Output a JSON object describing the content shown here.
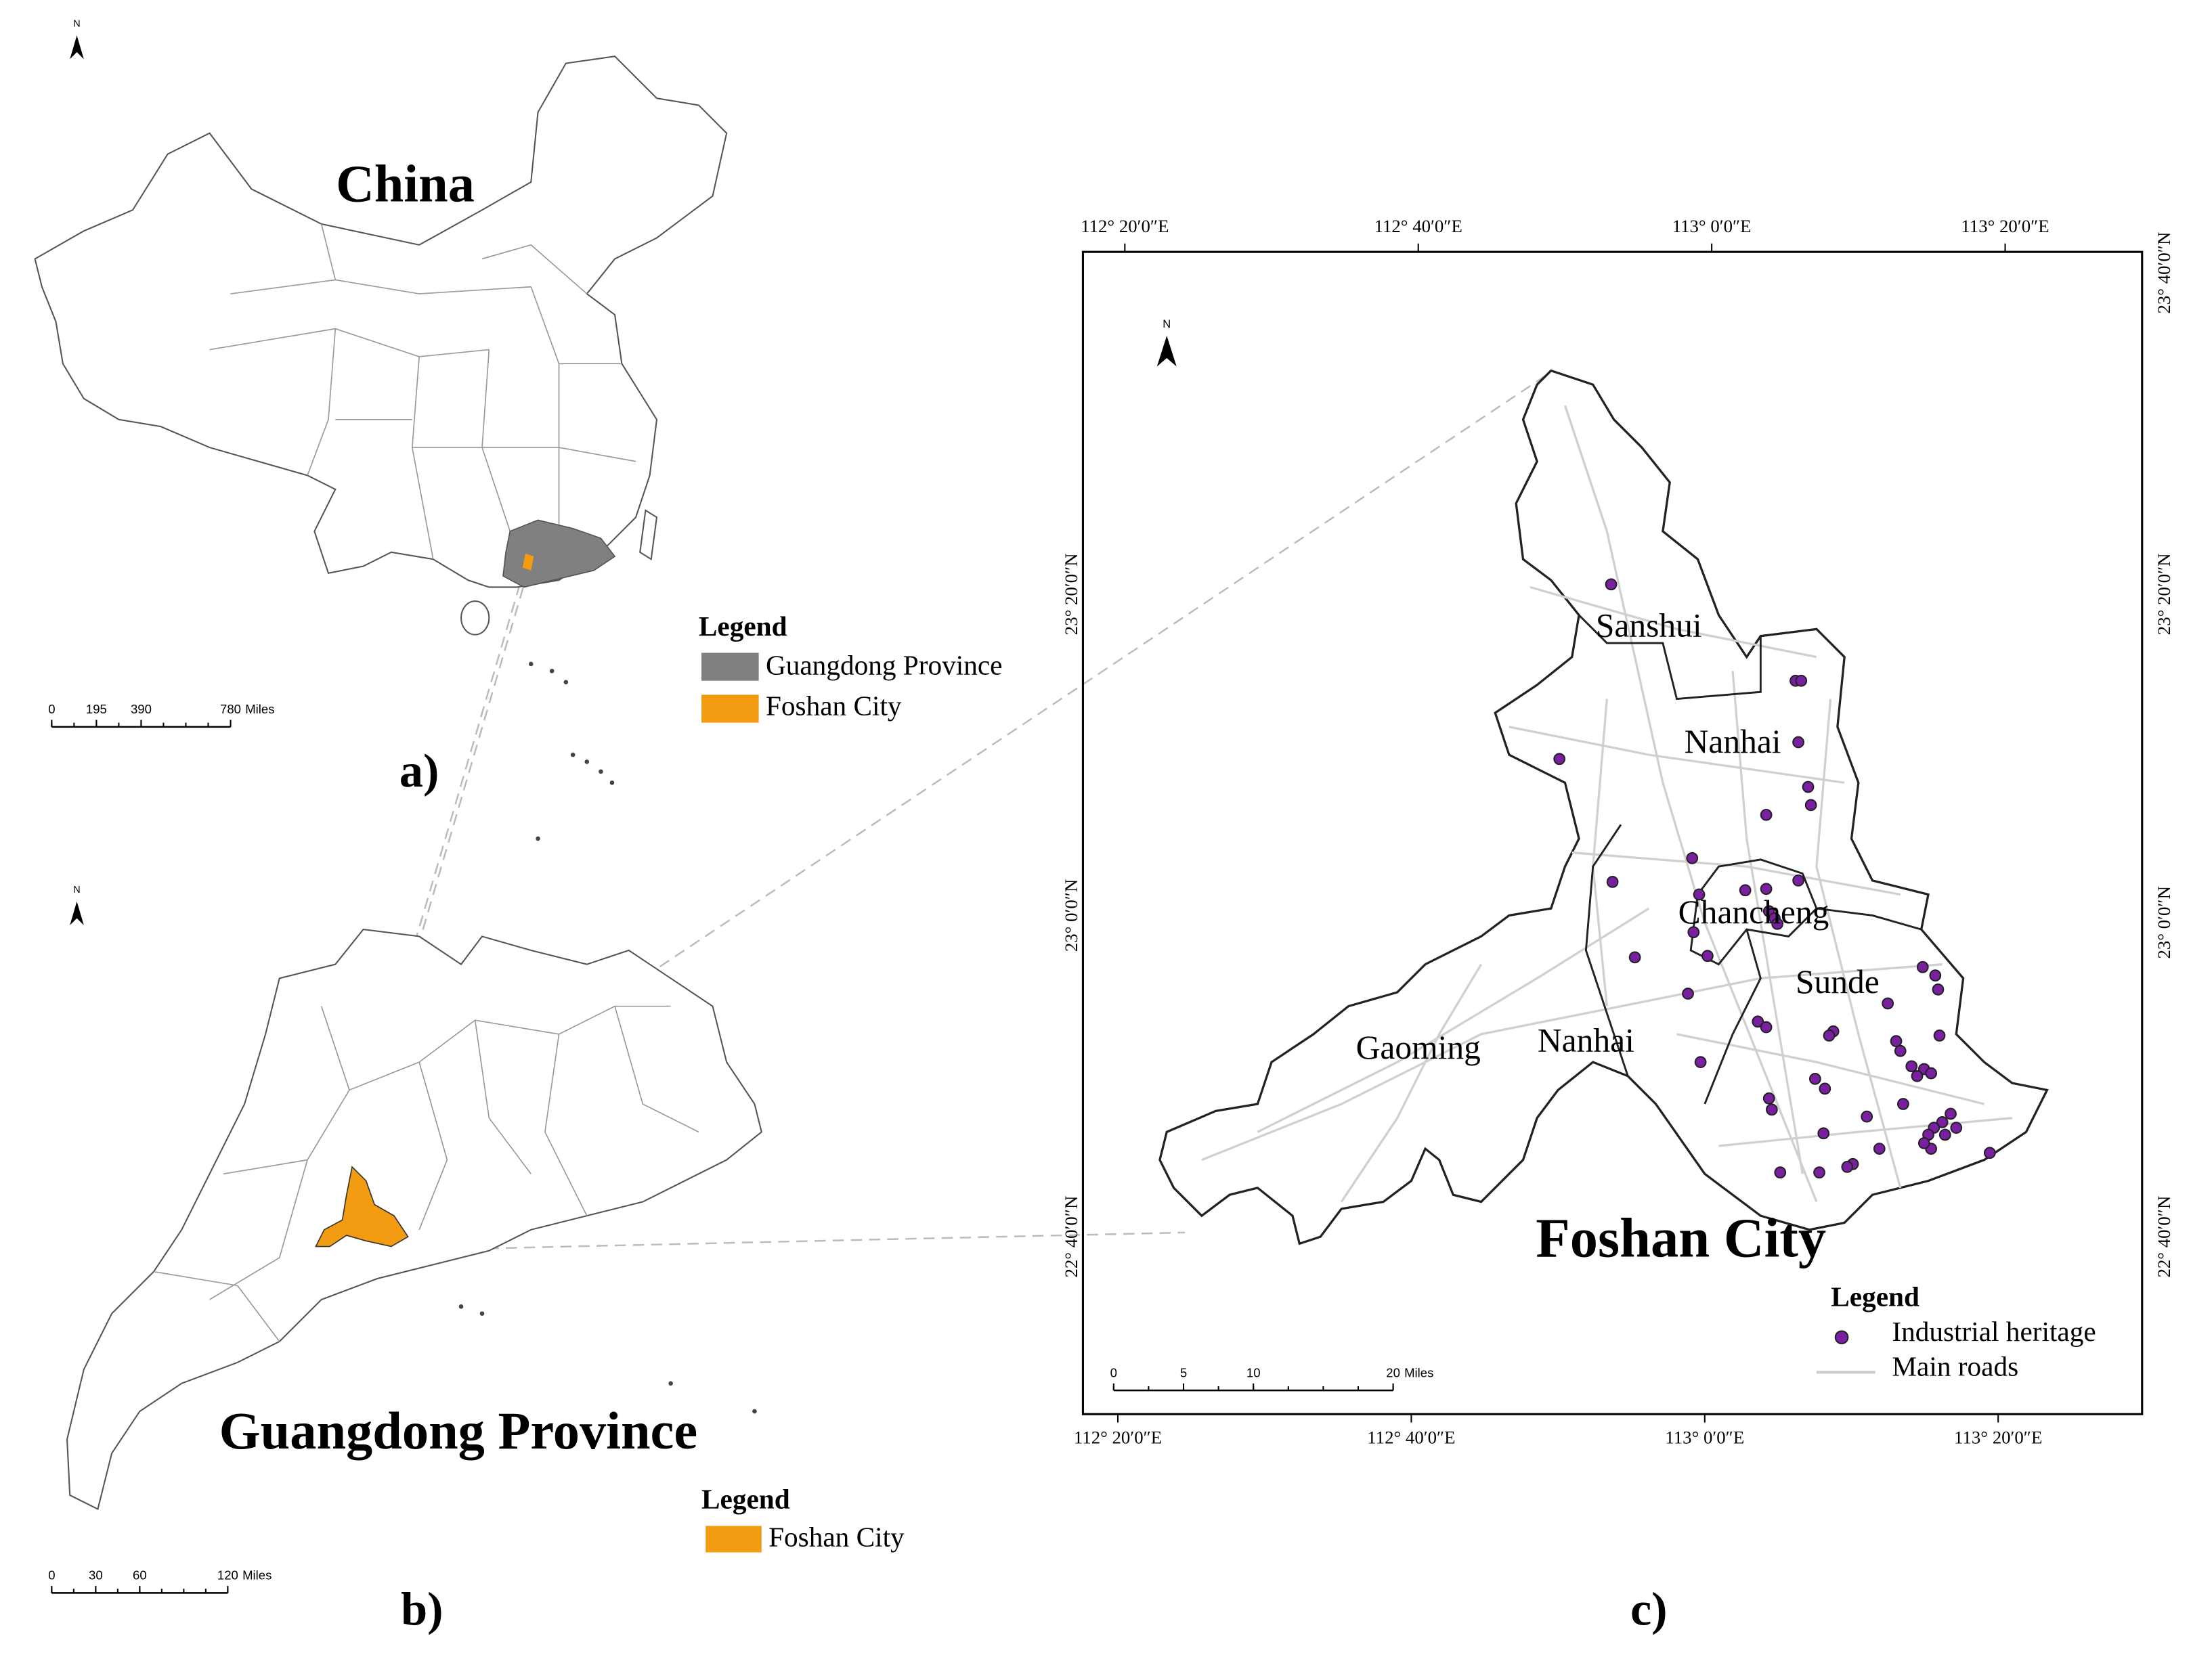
{
  "panel_a": {
    "north": "N",
    "title": "China",
    "label": "a)",
    "legend": {
      "title": "Legend",
      "items": [
        "Guangdong Province",
        "Foshan City"
      ]
    },
    "scale": {
      "ticks": [
        0,
        195,
        390,
        780
      ],
      "unit": "Miles"
    }
  },
  "panel_b": {
    "north": "N",
    "title": "Guangdong Province",
    "label": "b)",
    "legend": {
      "title": "Legend",
      "items": [
        "Foshan City"
      ]
    },
    "scale": {
      "ticks": [
        0,
        30,
        60,
        120
      ],
      "unit": "Miles"
    }
  },
  "panel_c": {
    "north": "N",
    "title": "Foshan City",
    "label": "c)",
    "districts": [
      "Sanshui",
      "Nanhai",
      "Chancheng",
      "Sunde",
      "Gaoming",
      "Nanhai"
    ],
    "legend": {
      "title": "Legend",
      "items": [
        "Industrial heritage",
        "Main roads"
      ]
    },
    "scale": {
      "ticks": [
        0,
        5,
        10,
        20
      ],
      "unit": "Miles"
    },
    "top_coords": [
      "112° 20′0″E",
      "112° 40′0″E",
      "113° 0′0″E",
      "113° 20′0″E"
    ],
    "bottom_coords": [
      "112° 20′0″E",
      "112° 40′0″E",
      "113° 0′0″E",
      "113° 20′0″E"
    ],
    "left_coords": [
      "23° 20′0″N",
      "23° 0′0″N",
      "22° 40′0″N"
    ],
    "right_coords": [
      "23° 40′0″N",
      "23° 20′0″N",
      "23° 0′0″N",
      "22° 40′0″N"
    ]
  }
}
